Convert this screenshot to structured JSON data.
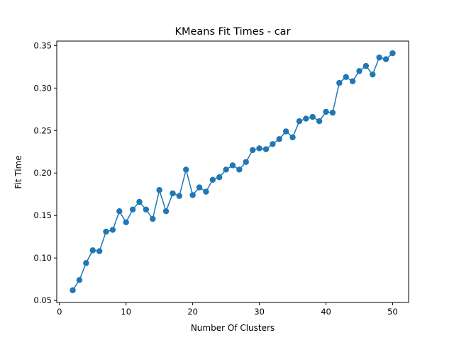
{
  "chart_data": {
    "type": "line",
    "title": "KMeans Fit Times - car",
    "xlabel": "Number Of Clusters",
    "ylabel": "Fit Time",
    "xlim": [
      -0.4,
      52.4
    ],
    "ylim": [
      0.0476,
      0.3553
    ],
    "xticks": [
      0,
      10,
      20,
      30,
      40,
      50
    ],
    "yticks": [
      0.05,
      0.1,
      0.15,
      0.2,
      0.25,
      0.3,
      0.35
    ],
    "grid": false,
    "legend": "none",
    "marker": "circle",
    "series": [
      {
        "color": "#1f77b4",
        "x": [
          2,
          3,
          4,
          5,
          6,
          7,
          8,
          9,
          10,
          11,
          12,
          13,
          14,
          15,
          16,
          17,
          18,
          19,
          20,
          21,
          22,
          23,
          24,
          25,
          26,
          27,
          28,
          29,
          30,
          31,
          32,
          33,
          34,
          35,
          36,
          37,
          38,
          39,
          40,
          41,
          42,
          43,
          44,
          45,
          46,
          47,
          48,
          49,
          50
        ],
        "y": [
          0.062,
          0.074,
          0.094,
          0.109,
          0.108,
          0.131,
          0.133,
          0.155,
          0.142,
          0.157,
          0.166,
          0.157,
          0.146,
          0.18,
          0.155,
          0.176,
          0.173,
          0.204,
          0.174,
          0.183,
          0.178,
          0.192,
          0.195,
          0.204,
          0.209,
          0.204,
          0.213,
          0.227,
          0.229,
          0.228,
          0.234,
          0.24,
          0.249,
          0.242,
          0.261,
          0.264,
          0.266,
          0.261,
          0.272,
          0.271,
          0.306,
          0.313,
          0.308,
          0.32,
          0.326,
          0.316,
          0.336,
          0.334,
          0.341
        ]
      }
    ]
  }
}
